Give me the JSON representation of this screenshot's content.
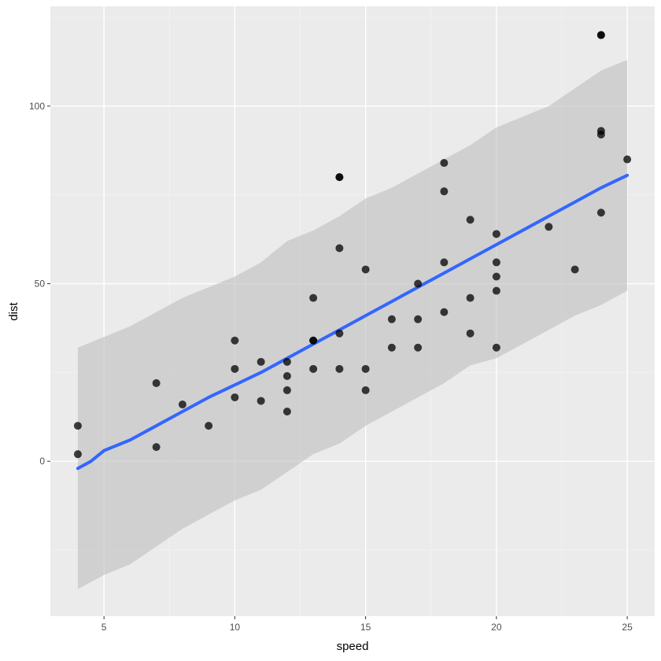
{
  "chart_data": {
    "type": "scatter",
    "xlabel": "speed",
    "ylabel": "dist",
    "xlim": [
      2.95,
      26.05
    ],
    "ylim": [
      -43.6,
      128.1
    ],
    "x_ticks": [
      5,
      10,
      15,
      20,
      25
    ],
    "x_minor_ticks": [
      7.5,
      12.5,
      17.5,
      22.5
    ],
    "y_ticks": [
      0,
      50,
      100
    ],
    "y_minor_ticks": [
      -25,
      25,
      75,
      125
    ],
    "x_tick_labels": [
      "5",
      "10",
      "15",
      "20",
      "25"
    ],
    "y_tick_labels": [
      "0",
      "50",
      "100"
    ],
    "grid": true,
    "legend": "none",
    "colors": {
      "panel_background": "#ebebeb",
      "grid_major": "#ffffff",
      "grid_minor": "#f5f5f5",
      "points": "#000000",
      "points_alpha": 0.75,
      "trend_line": "#3366ff",
      "band_fill": "#bebebe",
      "band_alpha": 0.6
    },
    "points": [
      {
        "x": 4,
        "y": 2
      },
      {
        "x": 4,
        "y": 10
      },
      {
        "x": 7,
        "y": 4
      },
      {
        "x": 7,
        "y": 22
      },
      {
        "x": 8,
        "y": 16
      },
      {
        "x": 9,
        "y": 10
      },
      {
        "x": 10,
        "y": 18
      },
      {
        "x": 10,
        "y": 26
      },
      {
        "x": 10,
        "y": 34
      },
      {
        "x": 11,
        "y": 17
      },
      {
        "x": 11,
        "y": 28
      },
      {
        "x": 12,
        "y": 14
      },
      {
        "x": 12,
        "y": 20
      },
      {
        "x": 12,
        "y": 24
      },
      {
        "x": 12,
        "y": 28
      },
      {
        "x": 13,
        "y": 26
      },
      {
        "x": 13,
        "y": 34
      },
      {
        "x": 13,
        "y": 34
      },
      {
        "x": 13,
        "y": 46
      },
      {
        "x": 14,
        "y": 26
      },
      {
        "x": 14,
        "y": 36
      },
      {
        "x": 14,
        "y": 60
      },
      {
        "x": 14,
        "y": 80
      },
      {
        "x": 14,
        "y": 80
      },
      {
        "x": 15,
        "y": 20
      },
      {
        "x": 15,
        "y": 26
      },
      {
        "x": 15,
        "y": 54
      },
      {
        "x": 16,
        "y": 32
      },
      {
        "x": 16,
        "y": 40
      },
      {
        "x": 17,
        "y": 32
      },
      {
        "x": 17,
        "y": 40
      },
      {
        "x": 17,
        "y": 50
      },
      {
        "x": 18,
        "y": 42
      },
      {
        "x": 18,
        "y": 56
      },
      {
        "x": 18,
        "y": 76
      },
      {
        "x": 18,
        "y": 84
      },
      {
        "x": 19,
        "y": 36
      },
      {
        "x": 19,
        "y": 46
      },
      {
        "x": 19,
        "y": 68
      },
      {
        "x": 20,
        "y": 32
      },
      {
        "x": 20,
        "y": 48
      },
      {
        "x": 20,
        "y": 52
      },
      {
        "x": 20,
        "y": 56
      },
      {
        "x": 20,
        "y": 64
      },
      {
        "x": 22,
        "y": 66
      },
      {
        "x": 23,
        "y": 54
      },
      {
        "x": 24,
        "y": 70
      },
      {
        "x": 24,
        "y": 92
      },
      {
        "x": 24,
        "y": 93
      },
      {
        "x": 24,
        "y": 120
      },
      {
        "x": 24,
        "y": 120
      },
      {
        "x": 25,
        "y": 85
      }
    ],
    "trend_line": [
      {
        "x": 4,
        "y": -2
      },
      {
        "x": 4.5,
        "y": 0
      },
      {
        "x": 5,
        "y": 3
      },
      {
        "x": 6,
        "y": 6
      },
      {
        "x": 7,
        "y": 10
      },
      {
        "x": 8,
        "y": 14
      },
      {
        "x": 9,
        "y": 18
      },
      {
        "x": 10,
        "y": 21.5
      },
      {
        "x": 11,
        "y": 25
      },
      {
        "x": 12,
        "y": 29
      },
      {
        "x": 13,
        "y": 33
      },
      {
        "x": 14,
        "y": 37
      },
      {
        "x": 15,
        "y": 41
      },
      {
        "x": 16,
        "y": 45
      },
      {
        "x": 17,
        "y": 49
      },
      {
        "x": 18,
        "y": 53
      },
      {
        "x": 19,
        "y": 57
      },
      {
        "x": 20,
        "y": 61
      },
      {
        "x": 21,
        "y": 65
      },
      {
        "x": 22,
        "y": 69
      },
      {
        "x": 23,
        "y": 73
      },
      {
        "x": 24,
        "y": 77
      },
      {
        "x": 25,
        "y": 80.5
      }
    ],
    "band_upper": [
      {
        "x": 4,
        "y": 32
      },
      {
        "x": 5,
        "y": 35
      },
      {
        "x": 6,
        "y": 38
      },
      {
        "x": 7,
        "y": 42
      },
      {
        "x": 8,
        "y": 46
      },
      {
        "x": 9,
        "y": 49
      },
      {
        "x": 10,
        "y": 52
      },
      {
        "x": 11,
        "y": 56
      },
      {
        "x": 12,
        "y": 62
      },
      {
        "x": 13,
        "y": 65
      },
      {
        "x": 14,
        "y": 69
      },
      {
        "x": 15,
        "y": 74
      },
      {
        "x": 16,
        "y": 77
      },
      {
        "x": 17,
        "y": 81
      },
      {
        "x": 18,
        "y": 85
      },
      {
        "x": 19,
        "y": 89
      },
      {
        "x": 20,
        "y": 94
      },
      {
        "x": 21,
        "y": 97
      },
      {
        "x": 22,
        "y": 100
      },
      {
        "x": 23,
        "y": 105
      },
      {
        "x": 24,
        "y": 110
      },
      {
        "x": 25,
        "y": 113
      }
    ],
    "band_lower": [
      {
        "x": 4,
        "y": -36
      },
      {
        "x": 5,
        "y": -32
      },
      {
        "x": 6,
        "y": -29
      },
      {
        "x": 7,
        "y": -24
      },
      {
        "x": 8,
        "y": -19
      },
      {
        "x": 9,
        "y": -15
      },
      {
        "x": 10,
        "y": -11
      },
      {
        "x": 11,
        "y": -8
      },
      {
        "x": 12,
        "y": -3
      },
      {
        "x": 13,
        "y": 2
      },
      {
        "x": 14,
        "y": 5
      },
      {
        "x": 15,
        "y": 10
      },
      {
        "x": 16,
        "y": 14
      },
      {
        "x": 17,
        "y": 18
      },
      {
        "x": 18,
        "y": 22
      },
      {
        "x": 19,
        "y": 27
      },
      {
        "x": 20,
        "y": 29
      },
      {
        "x": 21,
        "y": 33
      },
      {
        "x": 22,
        "y": 37
      },
      {
        "x": 23,
        "y": 41
      },
      {
        "x": 24,
        "y": 44
      },
      {
        "x": 25,
        "y": 48
      }
    ]
  }
}
